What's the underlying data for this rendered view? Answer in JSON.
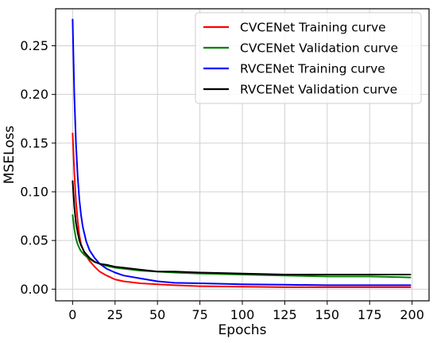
{
  "chart_data": {
    "type": "line",
    "xlabel": "Epochs",
    "ylabel": "MSELoss",
    "xlim": [
      -10,
      210
    ],
    "ylim": [
      -0.012,
      0.288
    ],
    "xticks": [
      0,
      25,
      50,
      75,
      100,
      125,
      150,
      175,
      200
    ],
    "xtick_labels": [
      "0",
      "25",
      "50",
      "75",
      "100",
      "125",
      "150",
      "175",
      "200"
    ],
    "yticks": [
      0.0,
      0.05,
      0.1,
      0.15,
      0.2,
      0.25
    ],
    "ytick_labels": [
      "0.00",
      "0.05",
      "0.10",
      "0.15",
      "0.20",
      "0.25"
    ],
    "grid": true,
    "legend_position": "top-right",
    "series": [
      {
        "name": "CVCENet Training curve",
        "color": "#ff0000",
        "x": [
          0,
          1,
          2,
          3,
          4,
          5,
          7,
          10,
          13,
          16,
          20,
          25,
          30,
          40,
          50,
          60,
          75,
          100,
          125,
          150,
          175,
          199
        ],
        "y": [
          0.16,
          0.12,
          0.09,
          0.07,
          0.055,
          0.046,
          0.037,
          0.029,
          0.023,
          0.018,
          0.014,
          0.01,
          0.008,
          0.006,
          0.005,
          0.004,
          0.003,
          0.0025,
          0.002,
          0.002,
          0.002,
          0.002
        ]
      },
      {
        "name": "CVCENet Validation curve",
        "color": "#008000",
        "x": [
          0,
          1,
          2,
          3,
          4,
          5,
          7,
          10,
          13,
          16,
          20,
          25,
          30,
          40,
          50,
          60,
          75,
          100,
          125,
          150,
          175,
          199
        ],
        "y": [
          0.076,
          0.062,
          0.052,
          0.046,
          0.042,
          0.039,
          0.035,
          0.031,
          0.028,
          0.026,
          0.024,
          0.022,
          0.021,
          0.019,
          0.018,
          0.017,
          0.016,
          0.015,
          0.014,
          0.013,
          0.013,
          0.012
        ]
      },
      {
        "name": "RVCENet Training curve",
        "color": "#0000ff",
        "x": [
          0,
          1,
          2,
          3,
          4,
          5,
          6,
          8,
          10,
          13,
          16,
          20,
          25,
          30,
          40,
          50,
          60,
          75,
          100,
          125,
          150,
          175,
          199
        ],
        "y": [
          0.277,
          0.2,
          0.15,
          0.115,
          0.092,
          0.076,
          0.064,
          0.049,
          0.04,
          0.032,
          0.026,
          0.021,
          0.017,
          0.014,
          0.011,
          0.008,
          0.0065,
          0.006,
          0.005,
          0.0045,
          0.004,
          0.004,
          0.004
        ]
      },
      {
        "name": "RVCENet Validation curve",
        "color": "#000000",
        "x": [
          0,
          1,
          2,
          3,
          4,
          5,
          7,
          10,
          13,
          16,
          20,
          25,
          30,
          40,
          50,
          60,
          75,
          100,
          125,
          150,
          175,
          199
        ],
        "y": [
          0.111,
          0.085,
          0.068,
          0.058,
          0.05,
          0.045,
          0.038,
          0.032,
          0.028,
          0.026,
          0.025,
          0.023,
          0.022,
          0.02,
          0.018,
          0.018,
          0.017,
          0.016,
          0.015,
          0.015,
          0.015,
          0.015
        ]
      }
    ]
  }
}
